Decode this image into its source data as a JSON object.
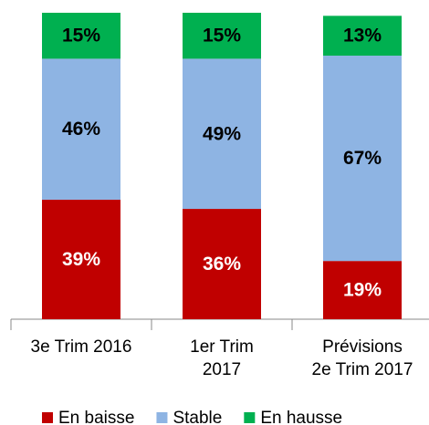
{
  "chart_data": {
    "type": "stacked_bar",
    "categories": [
      "3e Trim  2016",
      "1er Trim\n2017",
      "Prévisions\n2e Trim  2017"
    ],
    "ylim": [
      0,
      100
    ],
    "series": [
      {
        "name": "En baisse",
        "color": "#c00000",
        "label_color": "#ffffff",
        "values": [
          39,
          36,
          19
        ],
        "value_labels": [
          "39%",
          "36%",
          "19%"
        ]
      },
      {
        "name": "Stable",
        "color": "#8eb4e3",
        "label_color": "#000000",
        "values": [
          46,
          49,
          67
        ],
        "value_labels": [
          "46%",
          "49%",
          "67%"
        ]
      },
      {
        "name": "En hausse",
        "color": "#00b050",
        "label_color": "#000000",
        "values": [
          15,
          15,
          13
        ],
        "value_labels": [
          "15%",
          "15%",
          "13%"
        ]
      }
    ],
    "legend": "bottom"
  }
}
